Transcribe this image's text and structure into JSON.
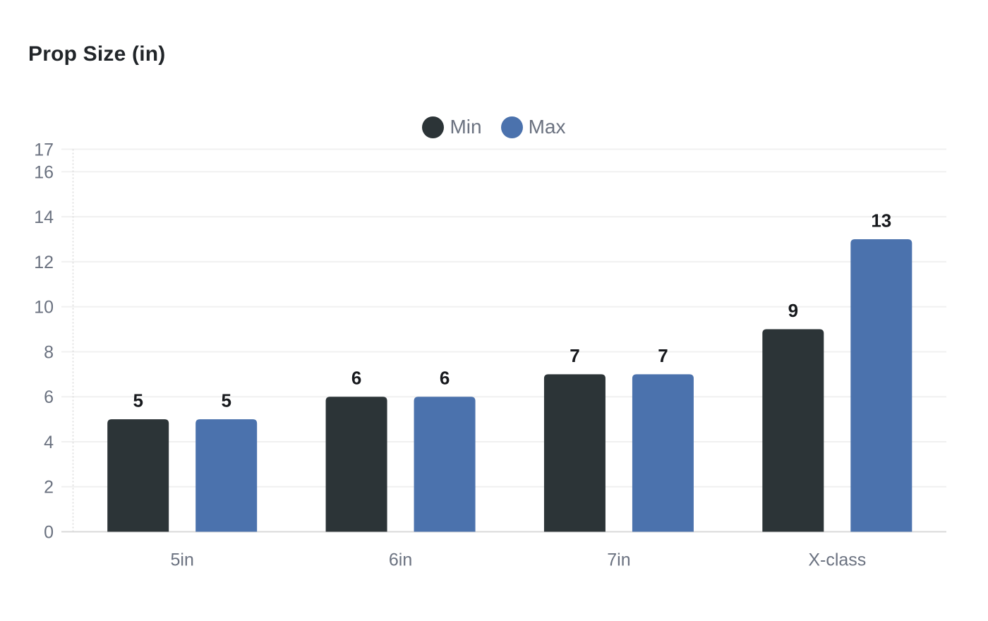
{
  "title": "Prop Size (in)",
  "legend": {
    "items": [
      {
        "label": "Min",
        "color": "#2c3437"
      },
      {
        "label": "Max",
        "color": "#4b72ad"
      }
    ]
  },
  "chart_data": {
    "type": "bar",
    "title": "Prop Size (in)",
    "categories": [
      "5in",
      "6in",
      "7in",
      "X-class"
    ],
    "series": [
      {
        "name": "Min",
        "color": "#2c3437",
        "values": [
          5,
          6,
          7,
          9
        ]
      },
      {
        "name": "Max",
        "color": "#4b72ad",
        "values": [
          5,
          6,
          7,
          13
        ]
      }
    ],
    "ylim": [
      0,
      17
    ],
    "yticks": [
      0,
      2,
      4,
      6,
      8,
      10,
      12,
      14,
      16,
      17
    ],
    "grid": true,
    "legend_position": "top-center",
    "data_labels": true,
    "colors": {
      "axis_text": "#6b7280",
      "data_label": "#17191d",
      "gridline": "#f0f0f0",
      "baseline": "#d9d9d9",
      "axis_line": "#d9d9d9",
      "title_text": "#212529",
      "background": "#ffffff"
    }
  }
}
